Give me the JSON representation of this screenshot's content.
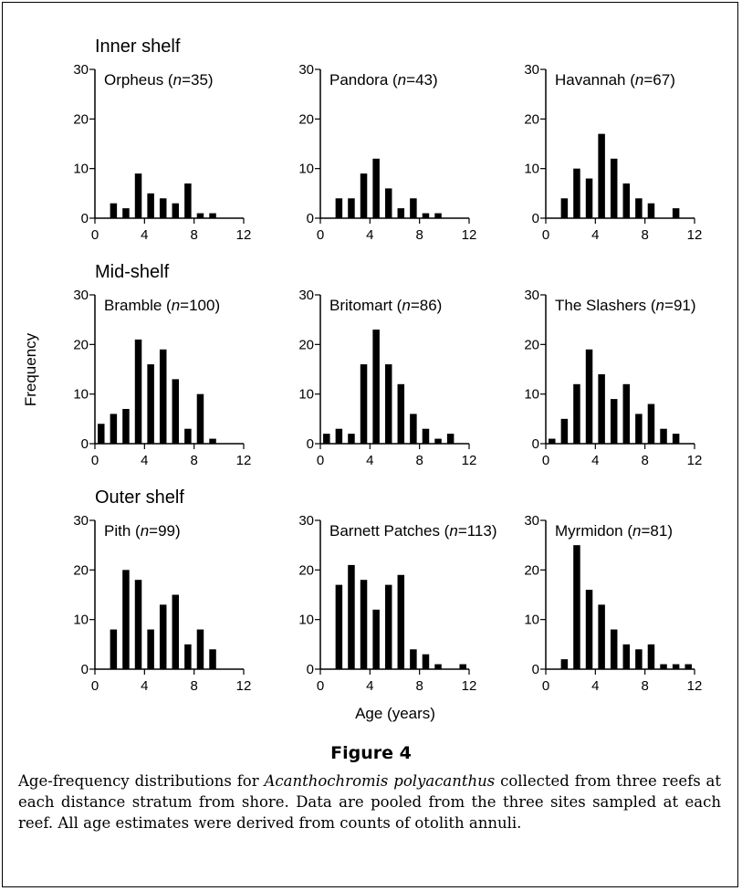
{
  "figure": {
    "heading": "Figure 4",
    "caption_pre": "Age-frequency distributions for ",
    "caption_species": "Acanthochromis polyacanthus",
    "caption_post": " collected from three reefs at each distance stratum from shore. Data are pooled from the three sites sampled at each reef. All age estimates were derived from counts of otolith annuli."
  },
  "chart_data": {
    "type": "bar",
    "xlabel": "Age (years)",
    "ylabel": "Frequency",
    "x_ticks": [
      0,
      4,
      8,
      12
    ],
    "y_ticks": [
      0,
      10,
      20,
      30
    ],
    "xlim": [
      0,
      12
    ],
    "ylim": [
      0,
      30
    ],
    "ages": [
      0,
      1,
      2,
      3,
      4,
      5,
      6,
      7,
      8,
      9,
      10,
      11
    ],
    "bar_color": "#000000",
    "groups": [
      {
        "title": "Inner shelf",
        "panels": [
          {
            "name": "Orpheus",
            "n": "35",
            "values": [
              0,
              3,
              2,
              9,
              5,
              4,
              3,
              7,
              1,
              1,
              0,
              0
            ]
          },
          {
            "name": "Pandora",
            "n": "43",
            "values": [
              0,
              4,
              4,
              9,
              12,
              6,
              2,
              4,
              1,
              1,
              0,
              0
            ]
          },
          {
            "name": "Havannah",
            "n": "67",
            "values": [
              0,
              4,
              10,
              8,
              17,
              12,
              7,
              4,
              3,
              0,
              2,
              0
            ]
          }
        ]
      },
      {
        "title": "Mid-shelf",
        "panels": [
          {
            "name": "Bramble",
            "n": "100",
            "values": [
              4,
              6,
              7,
              21,
              16,
              19,
              13,
              3,
              10,
              1,
              0,
              0
            ]
          },
          {
            "name": "Britomart",
            "n": "86",
            "values": [
              2,
              3,
              2,
              16,
              23,
              16,
              12,
              6,
              3,
              1,
              2,
              0
            ]
          },
          {
            "name": "The Slashers",
            "n": "91",
            "values": [
              1,
              5,
              12,
              19,
              14,
              9,
              12,
              6,
              8,
              3,
              2,
              0
            ]
          }
        ]
      },
      {
        "title": "Outer shelf",
        "panels": [
          {
            "name": "Pith",
            "n": "99",
            "values": [
              0,
              8,
              20,
              18,
              8,
              13,
              15,
              5,
              8,
              4,
              0,
              0
            ]
          },
          {
            "name": "Barnett Patches",
            "n": "113",
            "values": [
              0,
              17,
              21,
              18,
              12,
              17,
              19,
              4,
              3,
              1,
              0,
              1
            ]
          },
          {
            "name": "Myrmidon",
            "n": "81",
            "values": [
              0,
              2,
              25,
              16,
              13,
              8,
              5,
              4,
              5,
              1,
              1,
              1
            ]
          }
        ]
      }
    ]
  }
}
